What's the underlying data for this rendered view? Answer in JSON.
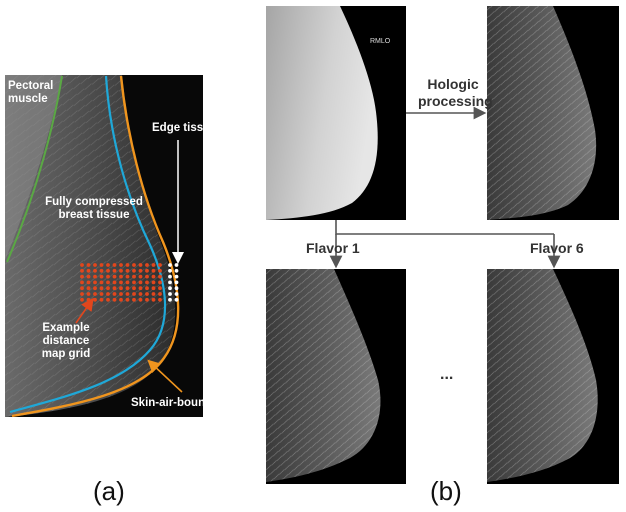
{
  "panel_a": {
    "label": "(a)",
    "annotations": {
      "pectoral_line1": "Pectoral",
      "pectoral_line2": "muscle",
      "edge_tissue": "Edge tissue",
      "compressed_line1": "Fully compressed",
      "compressed_line2": "breast tissue",
      "grid_line1": "Example",
      "grid_line2": "distance",
      "grid_line3": "map grid",
      "skin_air": "Skin-air-boundary"
    },
    "colors": {
      "pectoral_boundary": "#5aa844",
      "inner_boundary": "#1fa8d8",
      "skin_boundary": "#f0951e",
      "grid_dots": "#e2461c",
      "edge_dots": "#ffffff",
      "skin_arrow": "#f0951e",
      "grid_arrow": "#e2461c"
    }
  },
  "panel_b": {
    "label": "(b)",
    "raw_tag": "RMLO",
    "hologic_line1": "Hologic",
    "hologic_line2": "processing",
    "flavor_first": "Flavor 1",
    "flavor_last": "Flavor 6",
    "ellipsis": "..."
  }
}
